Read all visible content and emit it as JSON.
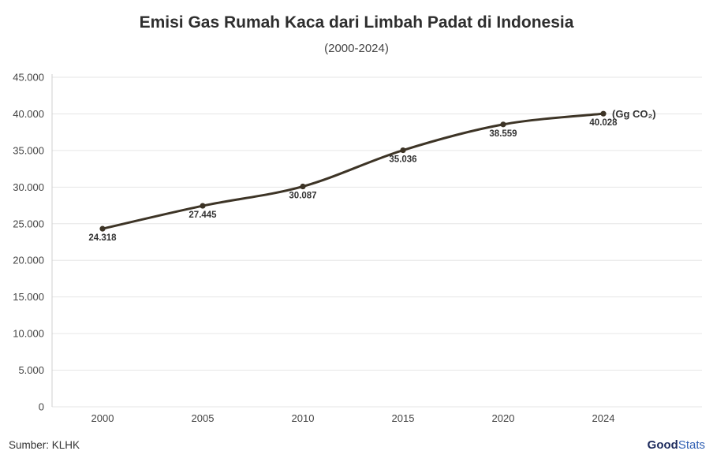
{
  "header": {
    "title": "Emisi Gas Rumah Kaca dari Limbah Padat di Indonesia",
    "subtitle": "(2000-2024)"
  },
  "footer": {
    "source": "Sumber: KLHK",
    "logo_good": "Good",
    "logo_stats": "Stats"
  },
  "colors": {
    "line": "#3d3426",
    "grid": "#e6e6e6",
    "axis": "#cfcfcf"
  },
  "chart_data": {
    "type": "line",
    "title": "Emisi Gas Rumah Kaca dari Limbah Padat di Indonesia",
    "subtitle": "(2000-2024)",
    "x": [
      "2000",
      "2005",
      "2010",
      "2015",
      "2020",
      "2024"
    ],
    "series": [
      {
        "values": [
          24318,
          27445,
          30087,
          35036,
          38559,
          40028
        ],
        "labels": [
          "24.318",
          "27.445",
          "30.087",
          "35.036",
          "38.559",
          "40.028"
        ]
      }
    ],
    "unit_annotation": "(Gg CO₂)",
    "ylim": [
      0,
      45000
    ],
    "yticks": [
      0,
      5000,
      10000,
      15000,
      20000,
      25000,
      30000,
      35000,
      40000,
      45000
    ],
    "ytick_labels": [
      "0",
      "5.000",
      "10.000",
      "15.000",
      "20.000",
      "25.000",
      "30.000",
      "35.000",
      "40.000",
      "45.000"
    ],
    "grid": true,
    "xlabel": "",
    "ylabel": ""
  }
}
